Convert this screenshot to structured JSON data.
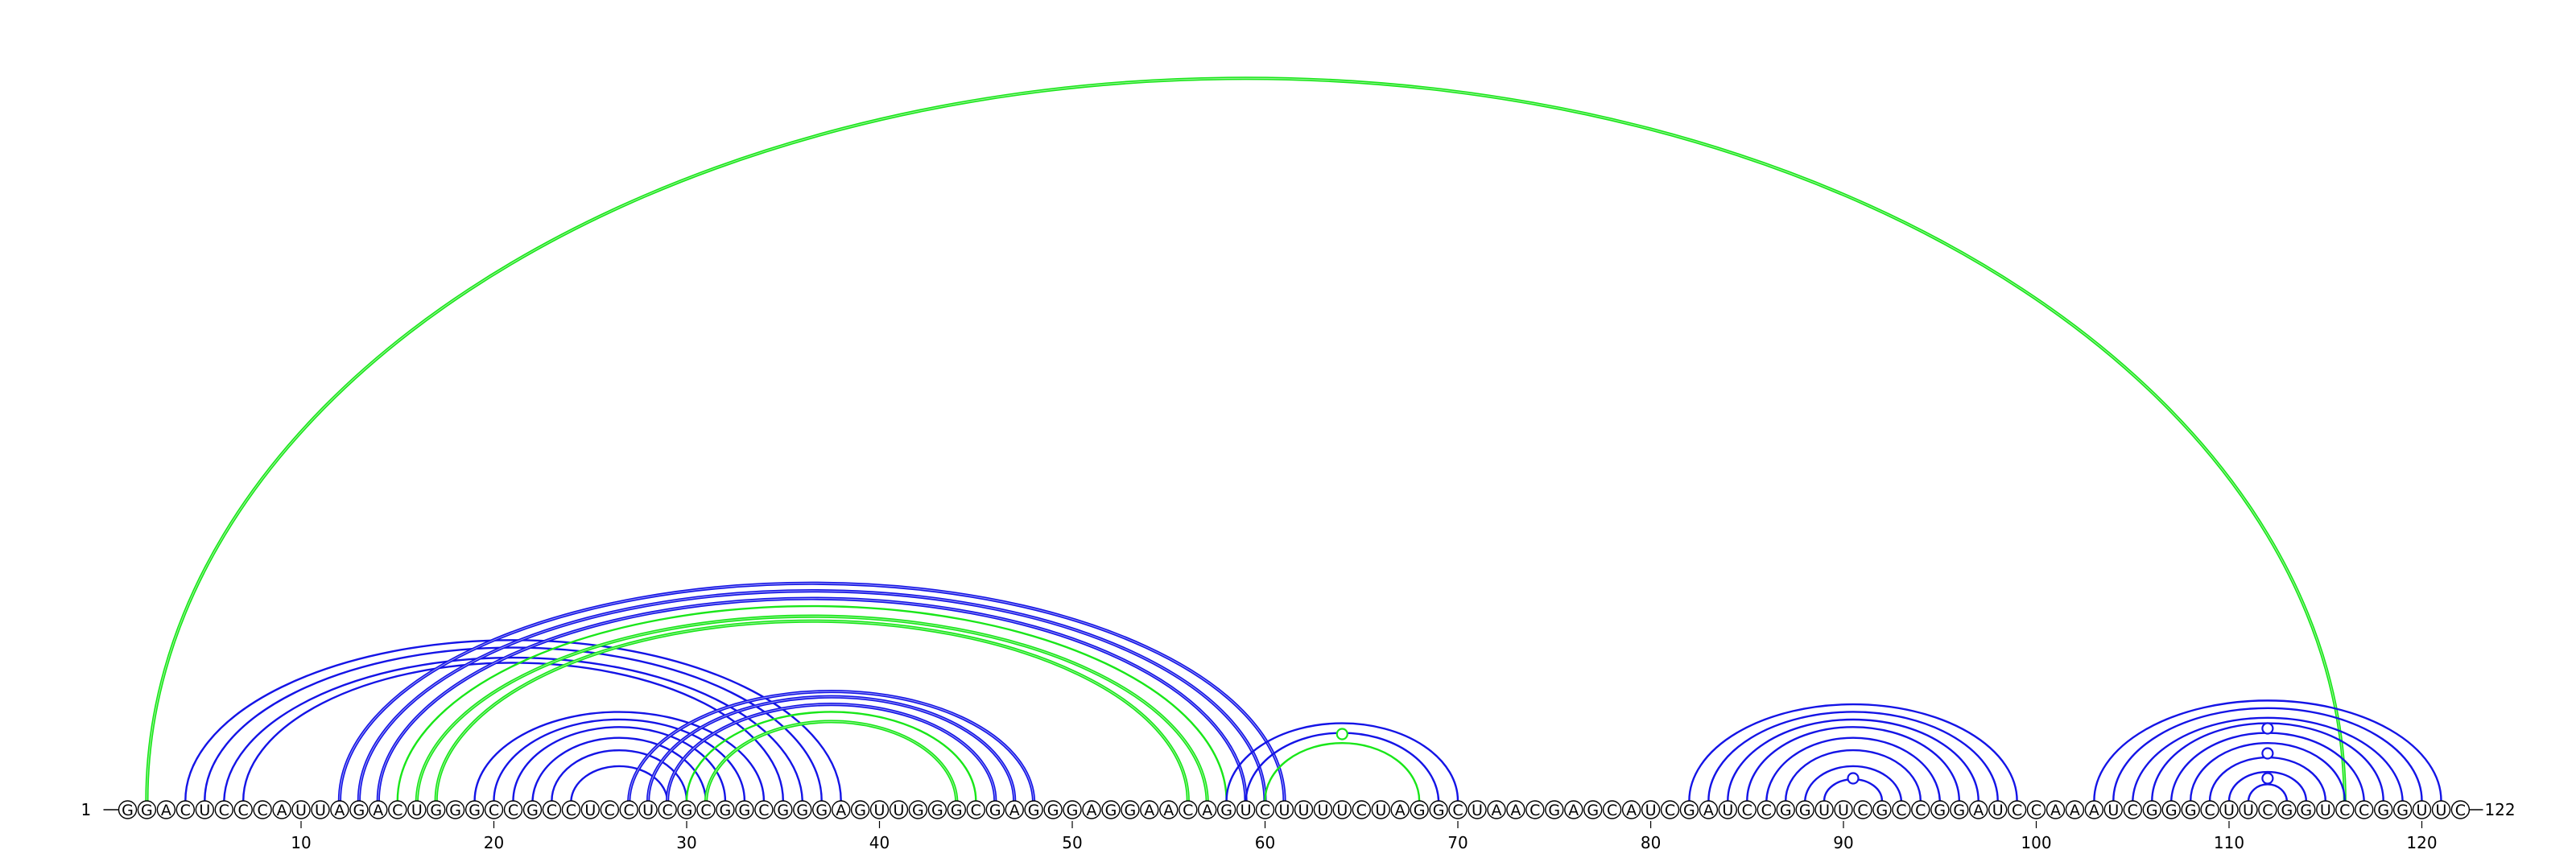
{
  "sequence": "GGACUCCCAUUAGACUGGGCCGCCUCCUCGCGGCGGGAGUUGGGCGAGGGAGGAACAGUCUUUUCUAGGCUAACGAGCAUCGAUCCGGUUCGCCGGAUCCAAAUCGGGCUUCGGUCCGGUUC",
  "start_label": "1",
  "end_label": "122",
  "ticks": [
    10,
    20,
    30,
    40,
    50,
    60,
    70,
    80,
    90,
    100,
    110,
    120
  ],
  "colors": {
    "blue": "#1414e6",
    "green": "#19e619",
    "backbone": "#000000"
  },
  "arcs": [
    {
      "i": 2,
      "j": 116,
      "color": "green",
      "weight": "thick"
    },
    {
      "i": 4,
      "j": 38,
      "color": "blue",
      "weight": "thin"
    },
    {
      "i": 5,
      "j": 37,
      "color": "blue",
      "weight": "thin"
    },
    {
      "i": 6,
      "j": 36,
      "color": "blue",
      "weight": "thin"
    },
    {
      "i": 7,
      "j": 35,
      "color": "blue",
      "weight": "thin"
    },
    {
      "i": 12,
      "j": 61,
      "color": "blue",
      "weight": "thick"
    },
    {
      "i": 13,
      "j": 60,
      "color": "blue",
      "weight": "thick"
    },
    {
      "i": 14,
      "j": 59,
      "color": "blue",
      "weight": "thick"
    },
    {
      "i": 15,
      "j": 58,
      "color": "green",
      "weight": "thin"
    },
    {
      "i": 16,
      "j": 57,
      "color": "green",
      "weight": "thick"
    },
    {
      "i": 17,
      "j": 56,
      "color": "green",
      "weight": "thick"
    },
    {
      "i": 19,
      "j": 34,
      "color": "blue",
      "weight": "thin"
    },
    {
      "i": 20,
      "j": 33,
      "color": "blue",
      "weight": "thin"
    },
    {
      "i": 21,
      "j": 32,
      "color": "blue",
      "weight": "thin"
    },
    {
      "i": 22,
      "j": 31,
      "color": "blue",
      "weight": "thin"
    },
    {
      "i": 23,
      "j": 30,
      "color": "blue",
      "weight": "thin"
    },
    {
      "i": 24,
      "j": 29,
      "color": "blue",
      "weight": "thin"
    },
    {
      "i": 27,
      "j": 48,
      "color": "blue",
      "weight": "thick"
    },
    {
      "i": 28,
      "j": 47,
      "color": "blue",
      "weight": "thick"
    },
    {
      "i": 29,
      "j": 46,
      "color": "blue",
      "weight": "thick"
    },
    {
      "i": 30,
      "j": 45,
      "color": "green",
      "weight": "thin"
    },
    {
      "i": 31,
      "j": 44,
      "color": "green",
      "weight": "thick"
    },
    {
      "i": 58,
      "j": 70,
      "color": "blue",
      "weight": "thin"
    },
    {
      "i": 59,
      "j": 69,
      "color": "blue",
      "weight": "thin"
    },
    {
      "i": 60,
      "j": 68,
      "color": "green",
      "weight": "thin"
    },
    {
      "i": 82,
      "j": 99,
      "color": "blue",
      "weight": "thin"
    },
    {
      "i": 83,
      "j": 98,
      "color": "blue",
      "weight": "thin"
    },
    {
      "i": 84,
      "j": 97,
      "color": "blue",
      "weight": "thin"
    },
    {
      "i": 85,
      "j": 96,
      "color": "blue",
      "weight": "thin"
    },
    {
      "i": 86,
      "j": 95,
      "color": "blue",
      "weight": "thin"
    },
    {
      "i": 87,
      "j": 94,
      "color": "blue",
      "weight": "thin"
    },
    {
      "i": 88,
      "j": 93,
      "color": "blue",
      "weight": "thin"
    },
    {
      "i": 89,
      "j": 92,
      "color": "blue",
      "weight": "thin"
    },
    {
      "i": 103,
      "j": 121,
      "color": "blue",
      "weight": "thin"
    },
    {
      "i": 104,
      "j": 120,
      "color": "blue",
      "weight": "thin"
    },
    {
      "i": 105,
      "j": 119,
      "color": "blue",
      "weight": "thin"
    },
    {
      "i": 106,
      "j": 118,
      "color": "blue",
      "weight": "thin"
    },
    {
      "i": 107,
      "j": 117,
      "color": "blue",
      "weight": "thin"
    },
    {
      "i": 108,
      "j": 116,
      "color": "blue",
      "weight": "thin"
    },
    {
      "i": 109,
      "j": 115,
      "color": "blue",
      "weight": "thin"
    },
    {
      "i": 110,
      "j": 114,
      "color": "blue",
      "weight": "thin"
    },
    {
      "i": 111,
      "j": 113,
      "color": "blue",
      "weight": "thin"
    }
  ],
  "unpaired_markers": [
    {
      "pos": 64,
      "color": "green"
    },
    {
      "pos": 90.5,
      "color": "blue"
    },
    {
      "pos": 112,
      "color": "blue"
    },
    {
      "pos": 112,
      "color": "blue"
    },
    {
      "pos": 112,
      "color": "blue"
    }
  ]
}
